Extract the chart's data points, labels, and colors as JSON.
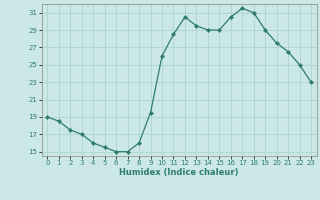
{
  "x": [
    0,
    1,
    2,
    3,
    4,
    5,
    6,
    7,
    8,
    9,
    10,
    11,
    12,
    13,
    14,
    15,
    16,
    17,
    18,
    19,
    20,
    21,
    22,
    23
  ],
  "y": [
    19,
    18.5,
    17.5,
    17,
    16,
    15.5,
    15,
    15,
    16,
    19.5,
    26,
    28.5,
    30.5,
    29.5,
    29,
    29,
    30.5,
    31.5,
    31,
    29,
    27.5,
    26.5,
    25,
    23
  ],
  "line_color": "#2e7d6e",
  "marker_color": "#2e7d6e",
  "bg_color": "#cce8e6",
  "grid_color": "#add4d0",
  "xlabel": "Humidex (Indice chaleur)",
  "xlim": [
    -0.5,
    23.5
  ],
  "ylim": [
    14.5,
    32
  ],
  "yticks": [
    15,
    17,
    19,
    21,
    23,
    25,
    27,
    29,
    31
  ],
  "xticks": [
    0,
    1,
    2,
    3,
    4,
    5,
    6,
    7,
    8,
    9,
    10,
    11,
    12,
    13,
    14,
    15,
    16,
    17,
    18,
    19,
    20,
    21,
    22,
    23
  ]
}
